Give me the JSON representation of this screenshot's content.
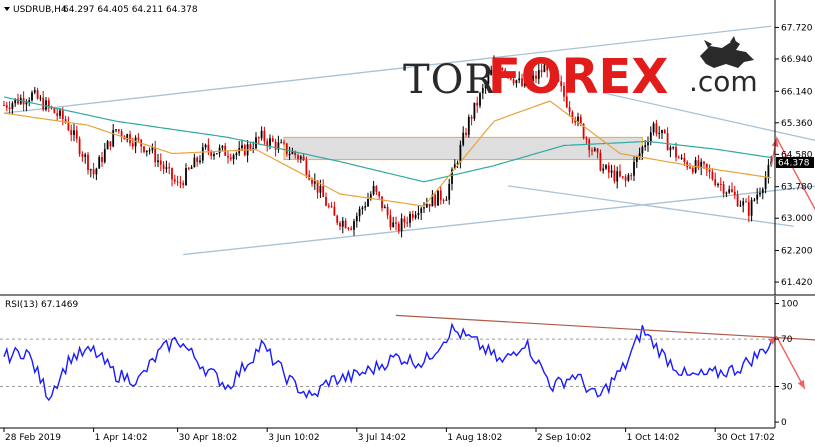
{
  "header": {
    "symbol": "USDRUB,H4",
    "ohlc": "64.297 64.405 64.211 64.378"
  },
  "logo": {
    "part1": "TOR",
    "part2": "FOREX",
    "part3": ".com"
  },
  "colors": {
    "bull": "#000000",
    "bear": "#e00000",
    "ma_fast": "#e8a33a",
    "ma_slow": "#2fa9a2",
    "channel": "#a9c2d6",
    "zone_fill": "#d8d8d8",
    "zone_border": "#e8b21c",
    "forecast": "#f06060",
    "rsi": "#1a1aff",
    "rsi_trend": "#b05a4a"
  },
  "chart_data": [
    {
      "type": "candlestick",
      "title": "USDRUB,H4",
      "ylim": [
        61.1,
        68.25
      ],
      "yticks": [
        "67.720",
        "66.940",
        "66.140",
        "65.360",
        "64.580",
        "63.780",
        "63.000",
        "62.200",
        "61.420"
      ],
      "yticks_values": [
        67.72,
        66.94,
        66.14,
        65.36,
        64.58,
        63.78,
        63.0,
        62.2,
        61.42
      ],
      "last_price": "64.378",
      "last_price_value": 64.378,
      "zone": [
        64.45,
        65.0
      ],
      "anchors": [
        [
          0,
          65.8
        ],
        [
          10,
          66.05
        ],
        [
          22,
          65.4
        ],
        [
          32,
          64.1
        ],
        [
          40,
          65.2
        ],
        [
          52,
          64.7
        ],
        [
          62,
          63.8
        ],
        [
          72,
          64.7
        ],
        [
          84,
          64.6
        ],
        [
          92,
          65.0
        ],
        [
          106,
          64.5
        ],
        [
          118,
          63.0
        ],
        [
          124,
          62.85
        ],
        [
          132,
          63.7
        ],
        [
          140,
          62.7
        ],
        [
          148,
          63.3
        ],
        [
          158,
          63.6
        ],
        [
          166,
          65.4
        ],
        [
          176,
          66.9
        ],
        [
          186,
          66.2
        ],
        [
          194,
          66.8
        ],
        [
          204,
          65.5
        ],
        [
          214,
          64.2
        ],
        [
          222,
          63.9
        ],
        [
          232,
          65.3
        ],
        [
          242,
          64.4
        ],
        [
          250,
          64.2
        ],
        [
          260,
          63.6
        ],
        [
          266,
          63.2
        ],
        [
          274,
          64.3
        ]
      ],
      "ma_fast_anchors": [
        [
          0,
          65.6
        ],
        [
          30,
          65.3
        ],
        [
          60,
          64.6
        ],
        [
          90,
          64.7
        ],
        [
          120,
          63.6
        ],
        [
          150,
          63.3
        ],
        [
          175,
          65.4
        ],
        [
          195,
          65.9
        ],
        [
          220,
          64.6
        ],
        [
          245,
          64.3
        ],
        [
          274,
          64.0
        ]
      ],
      "ma_slow_anchors": [
        [
          0,
          66.0
        ],
        [
          40,
          65.4
        ],
        [
          80,
          65.0
        ],
        [
          120,
          64.4
        ],
        [
          150,
          63.9
        ],
        [
          175,
          64.3
        ],
        [
          200,
          64.8
        ],
        [
          230,
          64.9
        ],
        [
          255,
          64.7
        ],
        [
          274,
          64.5
        ]
      ],
      "upper_channel": [
        [
          0,
          65.6
        ],
        [
          274,
          67.75
        ]
      ],
      "lower_channel": [
        [
          64,
          62.1
        ],
        [
          344,
          64.2
        ]
      ],
      "desc_upper": [
        [
          214,
          66.1
        ],
        [
          314,
          64.55
        ]
      ],
      "desc_lower": [
        [
          180,
          63.8
        ],
        [
          282,
          62.8
        ]
      ],
      "forecast": [
        [
          274,
          64.3
        ],
        [
          276,
          64.98
        ],
        [
          298,
          62.15
        ]
      ]
    },
    {
      "type": "line",
      "title": "RSI(13) 67.1469",
      "ylim": [
        -5,
        103
      ],
      "yticks": [
        "100",
        "70",
        "30",
        "0"
      ],
      "yticks_values": [
        100,
        70,
        30,
        0
      ],
      "levels": [
        70,
        30
      ],
      "rsi_anchors": [
        [
          0,
          55
        ],
        [
          8,
          60
        ],
        [
          16,
          22
        ],
        [
          24,
          55
        ],
        [
          32,
          60
        ],
        [
          40,
          40
        ],
        [
          48,
          35
        ],
        [
          56,
          60
        ],
        [
          62,
          70
        ],
        [
          72,
          45
        ],
        [
          80,
          30
        ],
        [
          92,
          65
        ],
        [
          102,
          35
        ],
        [
          110,
          20
        ],
        [
          116,
          35
        ],
        [
          124,
          38
        ],
        [
          132,
          45
        ],
        [
          140,
          55
        ],
        [
          150,
          50
        ],
        [
          160,
          78
        ],
        [
          168,
          68
        ],
        [
          178,
          50
        ],
        [
          186,
          68
        ],
        [
          196,
          30
        ],
        [
          204,
          40
        ],
        [
          212,
          20
        ],
        [
          222,
          48
        ],
        [
          228,
          78
        ],
        [
          236,
          55
        ],
        [
          244,
          38
        ],
        [
          252,
          40
        ],
        [
          262,
          45
        ],
        [
          270,
          58
        ],
        [
          274,
          67
        ]
      ],
      "rsi_trend": [
        [
          140,
          90
        ],
        [
          314,
          66
        ]
      ],
      "rsi_forecast": [
        [
          274,
          68
        ],
        [
          276,
          72
        ],
        [
          286,
          28
        ]
      ]
    }
  ],
  "xaxis": {
    "labels": [
      "28 Feb 2019",
      "1 Apr 14:02",
      "30 Apr 18:02",
      "3 Jun 10:02",
      "3 Jul 14:02",
      "1 Aug 18:02",
      "2 Sep 10:02",
      "1 Oct 14:02",
      "30 Oct 17:02"
    ],
    "positions": [
      0,
      32,
      62,
      94,
      126,
      158,
      190,
      222,
      254
    ]
  }
}
